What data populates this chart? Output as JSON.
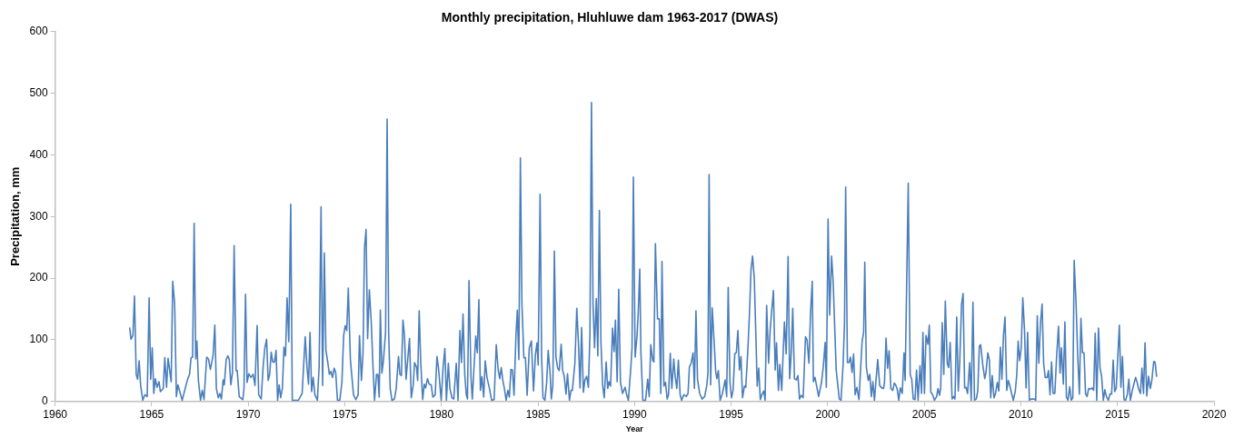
{
  "chart_data": {
    "type": "line",
    "title": "Monthly precipitation, Hluhluwe dam 1963-2017 (DWAS)",
    "xlabel": "Year",
    "ylabel": "Precipitation, mm",
    "xlim": [
      1960,
      2020
    ],
    "xticks": [
      1960,
      1965,
      1970,
      1975,
      1980,
      1985,
      1990,
      1995,
      2000,
      2005,
      2010,
      2015,
      2020
    ],
    "ylim": [
      0,
      600
    ],
    "yticks": [
      0,
      100,
      200,
      300,
      400,
      500,
      600
    ],
    "grid": false,
    "legend": false,
    "marker": "none",
    "line_style": "solid",
    "series": [
      {
        "color": "#4a7ebb",
        "x": [
          1963.86,
          1963.93,
          1964.03,
          1964.11,
          1964.2,
          1964.27,
          1964.35,
          1964.43,
          1964.54,
          1964.65,
          1964.77,
          1964.87,
          1964.95,
          1965.03,
          1965.11,
          1965.19,
          1965.28,
          1965.38,
          1965.45,
          1965.6,
          1965.68,
          1965.77,
          1965.85,
          1965.91,
          1966.01,
          1966.09,
          1966.19,
          1966.28,
          1966.36,
          1966.58,
          1966.71,
          1966.86,
          1966.96,
          1967.04,
          1967.12,
          1967.2,
          1967.28,
          1967.34,
          1967.42,
          1967.53,
          1967.62,
          1967.71,
          1967.85,
          1967.94,
          1968.04,
          1968.18,
          1968.27,
          1968.35,
          1968.45,
          1968.53,
          1968.61,
          1968.7,
          1968.76,
          1968.86,
          1968.95,
          1969.02,
          1969.1,
          1969.18,
          1969.27,
          1969.37,
          1969.43,
          1969.53,
          1969.72,
          1969.78,
          1969.86,
          1969.94,
          1970.03,
          1970.14,
          1970.25,
          1970.35,
          1970.46,
          1970.54,
          1970.67,
          1970.77,
          1970.86,
          1970.95,
          1971.03,
          1971.11,
          1971.19,
          1971.27,
          1971.36,
          1971.44,
          1971.52,
          1971.6,
          1971.68,
          1971.77,
          1971.85,
          1971.93,
          1972.01,
          1972.1,
          1972.2,
          1972.28,
          1972.6,
          1972.79,
          1972.95,
          1973.04,
          1973.12,
          1973.2,
          1973.28,
          1973.36,
          1973.45,
          1973.58,
          1973.67,
          1973.77,
          1973.85,
          1973.94,
          1974.02,
          1974.12,
          1974.2,
          1974.28,
          1974.36,
          1974.45,
          1974.53,
          1974.62,
          1974.74,
          1974.85,
          1974.94,
          1975.02,
          1975.1,
          1975.18,
          1975.29,
          1975.45,
          1975.57,
          1975.69,
          1975.76,
          1975.86,
          1975.94,
          1976.02,
          1976.1,
          1976.18,
          1976.27,
          1976.37,
          1976.46,
          1976.54,
          1976.64,
          1976.71,
          1976.78,
          1976.84,
          1976.92,
          1977.0,
          1977.11,
          1977.19,
          1977.27,
          1977.35,
          1977.44,
          1977.57,
          1977.66,
          1977.78,
          1977.85,
          1977.93,
          1978.01,
          1978.09,
          1978.17,
          1978.27,
          1978.35,
          1978.44,
          1978.54,
          1978.61,
          1978.71,
          1978.77,
          1978.85,
          1978.93,
          1979.03,
          1979.11,
          1979.18,
          1979.28,
          1979.37,
          1979.47,
          1979.56,
          1979.68,
          1979.77,
          1979.85,
          1979.99,
          1980.09,
          1980.18,
          1980.26,
          1980.36,
          1980.44,
          1980.55,
          1980.64,
          1980.77,
          1980.86,
          1980.96,
          1981.04,
          1981.12,
          1981.21,
          1981.29,
          1981.35,
          1981.43,
          1981.53,
          1981.6,
          1981.7,
          1981.78,
          1981.86,
          1981.94,
          1982.02,
          1982.1,
          1982.19,
          1982.27,
          1982.36,
          1982.49,
          1982.6,
          1982.73,
          1982.84,
          1982.94,
          1983.02,
          1983.1,
          1983.18,
          1983.25,
          1983.35,
          1983.44,
          1983.52,
          1983.6,
          1983.68,
          1983.76,
          1983.86,
          1983.93,
          1984.01,
          1984.09,
          1984.17,
          1984.27,
          1984.35,
          1984.44,
          1984.55,
          1984.66,
          1984.77,
          1984.87,
          1984.95,
          1985.01,
          1985.11,
          1985.19,
          1985.26,
          1985.36,
          1985.45,
          1985.53,
          1985.63,
          1985.69,
          1985.77,
          1985.85,
          1985.93,
          1986.02,
          1986.1,
          1986.2,
          1986.28,
          1986.36,
          1986.45,
          1986.53,
          1986.63,
          1986.71,
          1986.78,
          1986.91,
          1987.01,
          1987.1,
          1987.18,
          1987.26,
          1987.35,
          1987.43,
          1987.52,
          1987.61,
          1987.69,
          1987.77,
          1987.85,
          1987.93,
          1988.02,
          1988.1,
          1988.18,
          1988.26,
          1988.35,
          1988.43,
          1988.53,
          1988.61,
          1988.68,
          1988.76,
          1988.86,
          1988.94,
          1989.01,
          1989.1,
          1989.18,
          1989.27,
          1989.38,
          1989.51,
          1989.59,
          1989.68,
          1989.81,
          1989.87,
          1989.94,
          1990.03,
          1990.13,
          1990.19,
          1990.27,
          1990.33,
          1990.43,
          1990.57,
          1990.68,
          1990.76,
          1990.84,
          1990.94,
          1991.0,
          1991.08,
          1991.19,
          1991.28,
          1991.36,
          1991.42,
          1991.52,
          1991.6,
          1991.69,
          1991.76,
          1991.85,
          1991.93,
          1992.03,
          1992.1,
          1992.19,
          1992.27,
          1992.36,
          1992.44,
          1992.55,
          1992.68,
          1992.77,
          1992.84,
          1992.93,
          1993.03,
          1993.1,
          1993.18,
          1993.26,
          1993.37,
          1993.5,
          1993.63,
          1993.74,
          1993.8,
          1993.86,
          1993.94,
          1994.02,
          1994.12,
          1994.2,
          1994.26,
          1994.34,
          1994.43,
          1994.55,
          1994.69,
          1994.77,
          1994.85,
          1994.94,
          1995.02,
          1995.1,
          1995.19,
          1995.27,
          1995.35,
          1995.43,
          1995.51,
          1995.59,
          1995.69,
          1995.76,
          1995.88,
          1995.95,
          1996.03,
          1996.11,
          1996.2,
          1996.29,
          1996.35,
          1996.43,
          1996.51,
          1996.59,
          1996.69,
          1996.76,
          1996.84,
          1996.94,
          1997.02,
          1997.09,
          1997.19,
          1997.28,
          1997.35,
          1997.45,
          1997.52,
          1997.62,
          1997.68,
          1997.76,
          1997.85,
          1997.95,
          1998.03,
          1998.11,
          1998.19,
          1998.28,
          1998.38,
          1998.46,
          1998.54,
          1998.63,
          1998.73,
          1998.85,
          1998.93,
          1999.03,
          1999.11,
          1999.2,
          1999.26,
          1999.34,
          1999.44,
          1999.53,
          1999.68,
          1999.77,
          1999.87,
          1999.93,
          2000.02,
          2000.1,
          2000.2,
          2000.28,
          2000.44,
          2000.6,
          2000.69,
          2000.8,
          2000.87,
          2000.93,
          2001.02,
          2001.1,
          2001.18,
          2001.26,
          2001.34,
          2001.42,
          2001.51,
          2001.62,
          2001.78,
          2001.86,
          2001.92,
          2002.0,
          2002.1,
          2002.18,
          2002.26,
          2002.34,
          2002.42,
          2002.5,
          2002.59,
          2002.69,
          2002.8,
          2002.89,
          2002.94,
          2003.02,
          2003.1,
          2003.18,
          2003.27,
          2003.37,
          2003.45,
          2003.53,
          2003.6,
          2003.68,
          2003.76,
          2003.86,
          2003.95,
          2004.01,
          2004.17,
          2004.27,
          2004.35,
          2004.43,
          2004.52,
          2004.6,
          2004.68,
          2004.78,
          2004.86,
          2004.93,
          2005.01,
          2005.09,
          2005.19,
          2005.26,
          2005.34,
          2005.42,
          2005.53,
          2005.64,
          2005.71,
          2005.79,
          2005.85,
          2005.93,
          2006.01,
          2006.09,
          2006.19,
          2006.26,
          2006.34,
          2006.44,
          2006.52,
          2006.59,
          2006.68,
          2006.76,
          2006.84,
          2006.93,
          2007.01,
          2007.09,
          2007.16,
          2007.24,
          2007.35,
          2007.43,
          2007.52,
          2007.6,
          2007.69,
          2007.77,
          2007.85,
          2007.92,
          2008.03,
          2008.13,
          2008.19,
          2008.29,
          2008.37,
          2008.44,
          2008.52,
          2008.61,
          2008.69,
          2008.78,
          2008.86,
          2008.94,
          2009.02,
          2009.1,
          2009.18,
          2009.27,
          2009.35,
          2009.42,
          2009.52,
          2009.61,
          2009.71,
          2009.79,
          2009.86,
          2009.94,
          2010.02,
          2010.1,
          2010.19,
          2010.27,
          2010.35,
          2010.44,
          2010.53,
          2010.69,
          2010.77,
          2010.85,
          2010.93,
          2011.02,
          2011.1,
          2011.18,
          2011.26,
          2011.36,
          2011.43,
          2011.51,
          2011.59,
          2011.67,
          2011.76,
          2011.85,
          2011.95,
          2012.03,
          2012.1,
          2012.2,
          2012.28,
          2012.36,
          2012.44,
          2012.53,
          2012.61,
          2012.69,
          2012.76,
          2012.86,
          2012.94,
          2013.03,
          2013.11,
          2013.19,
          2013.27,
          2013.35,
          2013.43,
          2013.51,
          2013.61,
          2013.69,
          2013.77,
          2013.85,
          2013.93,
          2014.02,
          2014.1,
          2014.18,
          2014.27,
          2014.35,
          2014.43,
          2014.53,
          2014.61,
          2014.7,
          2014.78,
          2014.86,
          2014.94,
          2015.1,
          2015.18,
          2015.26,
          2015.34,
          2015.42,
          2015.51,
          2015.59,
          2015.67,
          2015.77,
          2015.85,
          2015.94,
          2016.02,
          2016.1,
          2016.19,
          2016.27,
          2016.35,
          2016.43,
          2016.52,
          2016.61,
          2016.7,
          2016.78,
          2016.88,
          2016.95,
          2017.03
        ],
        "values": [
          120,
          101,
          107,
          171,
          44,
          36,
          66,
          26,
          2,
          11,
          8,
          168,
          36,
          87,
          13,
          37,
          23,
          32,
          16,
          21,
          71,
          23,
          70,
          56,
          32,
          195,
          158,
          8,
          27,
          2,
          18,
          36,
          44,
          71,
          72,
          289,
          69,
          98,
          34,
          2,
          18,
          3,
          72,
          69,
          52,
          75,
          124,
          21,
          6,
          13,
          4,
          35,
          27,
          68,
          74,
          68,
          27,
          46,
          253,
          50,
          50,
          8,
          3,
          21,
          174,
          31,
          45,
          39,
          44,
          26,
          123,
          11,
          4,
          56,
          87,
          101,
          34,
          44,
          80,
          64,
          64,
          83,
          2,
          27,
          6,
          22,
          88,
          74,
          168,
          97,
          320,
          2,
          2,
          13,
          105,
          56,
          28,
          112,
          16,
          39,
          11,
          2,
          56,
          316,
          26,
          241,
          83,
          63,
          44,
          49,
          39,
          54,
          46,
          2,
          2,
          31,
          107,
          123,
          115,
          184,
          67,
          11,
          3,
          11,
          107,
          34,
          77,
          250,
          279,
          102,
          181,
          128,
          56,
          2,
          44,
          44,
          7,
          148,
          46,
          67,
          112,
          458,
          112,
          21,
          2,
          4,
          21,
          73,
          44,
          42,
          132,
          107,
          36,
          73,
          102,
          6,
          26,
          63,
          56,
          34,
          147,
          64,
          3,
          28,
          22,
          37,
          28,
          27,
          7,
          11,
          73,
          54,
          2,
          56,
          86,
          2,
          62,
          21,
          6,
          4,
          62,
          2,
          115,
          63,
          142,
          44,
          11,
          4,
          196,
          41,
          4,
          62,
          106,
          79,
          165,
          18,
          40,
          7,
          66,
          39,
          21,
          2,
          3,
          92,
          51,
          37,
          55,
          34,
          23,
          2,
          18,
          7,
          52,
          51,
          10,
          107,
          148,
          68,
          395,
          158,
          71,
          71,
          10,
          87,
          98,
          17,
          77,
          95,
          59,
          336,
          72,
          6,
          2,
          31,
          83,
          44,
          4,
          26,
          244,
          72,
          54,
          50,
          93,
          50,
          41,
          12,
          45,
          2,
          18,
          18,
          62,
          151,
          92,
          22,
          120,
          15,
          35,
          41,
          23,
          107,
          485,
          158,
          87,
          167,
          74,
          310,
          97,
          26,
          6,
          64,
          21,
          32,
          25,
          119,
          81,
          132,
          32,
          182,
          31,
          13,
          23,
          11,
          2,
          56,
          87,
          364,
          72,
          107,
          143,
          215,
          79,
          2,
          2,
          36,
          8,
          92,
          67,
          64,
          256,
          134,
          134,
          13,
          227,
          25,
          31,
          4,
          11,
          78,
          21,
          69,
          41,
          21,
          67,
          11,
          2,
          11,
          8,
          13,
          56,
          62,
          79,
          21,
          147,
          36,
          13,
          4,
          8,
          26,
          46,
          368,
          27,
          152,
          97,
          49,
          37,
          50,
          2,
          13,
          35,
          8,
          185,
          31,
          6,
          18,
          78,
          79,
          115,
          51,
          73,
          6,
          25,
          23,
          92,
          143,
          214,
          236,
          199,
          97,
          25,
          54,
          3,
          11,
          17,
          2,
          156,
          62,
          115,
          143,
          180,
          51,
          95,
          18,
          60,
          18,
          68,
          129,
          77,
          235,
          37,
          77,
          151,
          37,
          35,
          42,
          4,
          10,
          6,
          105,
          100,
          62,
          143,
          195,
          32,
          39,
          23,
          8,
          31,
          56,
          96,
          23,
          296,
          140,
          236,
          196,
          51,
          4,
          2,
          62,
          128,
          348,
          63,
          63,
          72,
          47,
          77,
          11,
          23,
          3,
          97,
          112,
          226,
          56,
          34,
          44,
          8,
          32,
          2,
          34,
          68,
          26,
          22,
          21,
          31,
          103,
          54,
          82,
          21,
          18,
          30,
          26,
          20,
          2,
          22,
          13,
          79,
          34,
          354,
          44,
          36,
          4,
          3,
          51,
          2,
          58,
          13,
          112,
          13,
          107,
          93,
          124,
          15,
          12,
          2,
          8,
          21,
          10,
          22,
          128,
          44,
          163,
          62,
          55,
          96,
          4,
          8,
          4,
          137,
          17,
          67,
          158,
          175,
          22,
          23,
          13,
          63,
          2,
          161,
          2,
          4,
          17,
          90,
          92,
          59,
          37,
          46,
          79,
          67,
          6,
          42,
          6,
          13,
          31,
          17,
          88,
          36,
          107,
          137,
          18,
          34,
          27,
          13,
          2,
          16,
          44,
          98,
          66,
          87,
          168,
          116,
          22,
          112,
          2,
          4,
          4,
          2,
          139,
          62,
          128,
          158,
          62,
          39,
          39,
          50,
          11,
          64,
          13,
          13,
          72,
          122,
          46,
          87,
          28,
          129,
          7,
          2,
          24,
          2,
          6,
          229,
          158,
          77,
          12,
          135,
          79,
          79,
          12,
          8,
          21,
          20,
          22,
          18,
          111,
          2,
          119,
          54,
          41,
          2,
          19,
          8,
          2,
          12,
          12,
          67,
          16,
          22,
          124,
          23,
          73,
          3,
          2,
          11,
          36,
          2,
          18,
          28,
          39,
          31,
          20,
          13,
          54,
          13,
          95,
          9,
          41,
          21,
          34,
          65,
          64,
          40
        ]
      }
    ]
  }
}
